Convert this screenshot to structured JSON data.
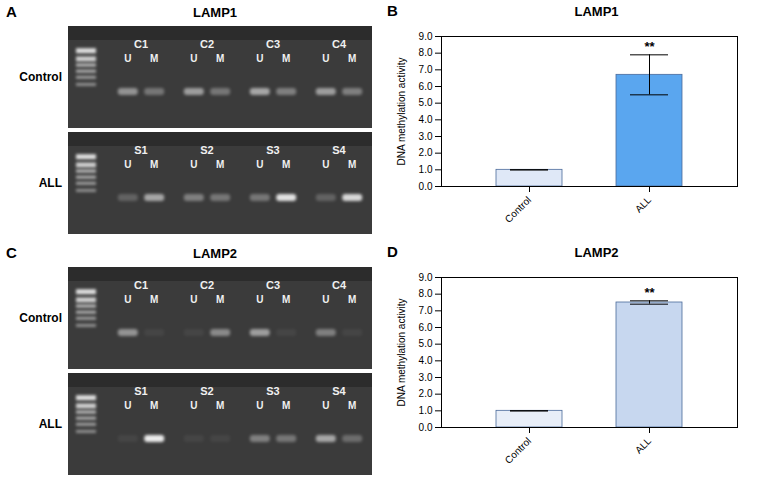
{
  "chart_data": [
    {
      "type": "gel",
      "panel": "A",
      "title": "LAMP1",
      "lanes": [
        "U",
        "M"
      ],
      "series": [
        {
          "name": "Control",
          "categories": [
            "C1",
            "C2",
            "C3",
            "C4"
          ],
          "values": [
            [
              0.45,
              0.3
            ],
            [
              0.5,
              0.3
            ],
            [
              0.55,
              0.35
            ],
            [
              0.5,
              0.35
            ]
          ]
        },
        {
          "name": "ALL",
          "categories": [
            "S1",
            "S2",
            "S3",
            "S4"
          ],
          "values": [
            [
              0.2,
              0.55
            ],
            [
              0.35,
              0.3
            ],
            [
              0.3,
              0.85
            ],
            [
              0.2,
              0.8
            ]
          ]
        }
      ]
    },
    {
      "type": "bar",
      "panel": "B",
      "title": "LAMP1",
      "y_label": "DNA methylation activity",
      "categories": [
        "Control",
        "ALL"
      ],
      "values": [
        1.0,
        6.7
      ],
      "errors": [
        0,
        1.2
      ],
      "colors": [
        "#dfe8f7",
        "#5aa6ef"
      ],
      "annotations": [
        {
          "category": "ALL",
          "text": "**"
        }
      ],
      "ylim": [
        0,
        9
      ],
      "yticks": [
        {
          "value": 0,
          "label": "0.0"
        },
        {
          "value": 1,
          "label": "1.0"
        },
        {
          "value": 2,
          "label": "2.0"
        },
        {
          "value": 3,
          "label": "3.0"
        },
        {
          "value": 4,
          "label": "4.0"
        },
        {
          "value": 5,
          "label": "5.0"
        },
        {
          "value": 6,
          "label": "6.0"
        },
        {
          "value": 7,
          "label": "7.0"
        },
        {
          "value": 8,
          "label": "8.0"
        },
        {
          "value": 9,
          "label": "9.0"
        }
      ]
    },
    {
      "type": "gel",
      "panel": "C",
      "title": "LAMP2",
      "lanes": [
        "U",
        "M"
      ],
      "series": [
        {
          "name": "Control",
          "categories": [
            "C1",
            "C2",
            "C3",
            "C4"
          ],
          "values": [
            [
              0.45,
              0.05
            ],
            [
              0.05,
              0.4
            ],
            [
              0.5,
              0.05
            ],
            [
              0.35,
              0.05
            ]
          ]
        },
        {
          "name": "ALL",
          "categories": [
            "S1",
            "S2",
            "S3",
            "S4"
          ],
          "values": [
            [
              0.05,
              0.9
            ],
            [
              0.05,
              0.05
            ],
            [
              0.35,
              0.3
            ],
            [
              0.55,
              0.25
            ]
          ]
        }
      ]
    },
    {
      "type": "bar",
      "panel": "D",
      "title": "LAMP2",
      "y_label": "DNA methylation activity",
      "categories": [
        "Control",
        "ALL"
      ],
      "values": [
        1.0,
        7.5
      ],
      "errors": [
        0,
        0.1
      ],
      "colors": [
        "#e8eef8",
        "#c7d7ef"
      ],
      "annotations": [
        {
          "category": "ALL",
          "text": "**"
        }
      ],
      "ylim": [
        0,
        9
      ],
      "yticks": [
        {
          "value": 0,
          "label": "0.0"
        },
        {
          "value": 1,
          "label": "1.0"
        },
        {
          "value": 2,
          "label": "2.0"
        },
        {
          "value": 3,
          "label": "3.0"
        },
        {
          "value": 4,
          "label": "4.0"
        },
        {
          "value": 5,
          "label": "5.0"
        },
        {
          "value": 6,
          "label": "6.0"
        },
        {
          "value": 7,
          "label": "7.0"
        },
        {
          "value": 8,
          "label": "8.0"
        },
        {
          "value": 9,
          "label": "9.0"
        }
      ]
    }
  ]
}
